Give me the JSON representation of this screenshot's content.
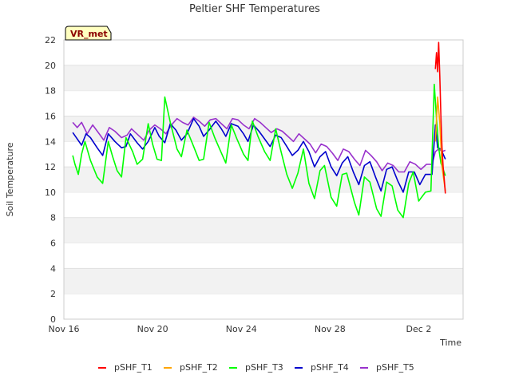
{
  "chart_data": {
    "type": "line",
    "title": "Peltier SHF Temperatures",
    "xlabel": "Time",
    "ylabel": "Soil Temperature",
    "badge": "VR_met",
    "ylim": [
      0,
      22
    ],
    "yticks": [
      0,
      2,
      4,
      6,
      8,
      10,
      12,
      14,
      16,
      18,
      20,
      22
    ],
    "xlim": [
      "Nov 16",
      "Dec 4"
    ],
    "xticks": [
      "Nov 16",
      "Nov 20",
      "Nov 24",
      "Nov 28",
      "Dec 2"
    ],
    "grid": "horizontal bands",
    "legend_position": "bottom",
    "series": [
      {
        "name": "pSHF_T1",
        "color": "#ff0000",
        "x": [
          16.75,
          16.8,
          16.85,
          16.9,
          16.95,
          17.0,
          17.05,
          17.1,
          17.15,
          17.2
        ],
        "y": [
          19.7,
          21.0,
          19.5,
          21.8,
          19.2,
          16.0,
          13.5,
          12.0,
          11.0,
          9.9
        ]
      },
      {
        "name": "pSHF_T2",
        "color": "#ffa500",
        "x": [
          16.75,
          16.85,
          16.95,
          17.05,
          17.2
        ],
        "y": [
          14.0,
          17.5,
          15.5,
          12.0,
          10.1
        ]
      },
      {
        "name": "pSHF_T3",
        "color": "#00ff00",
        "x": [
          0.4,
          0.5,
          0.65,
          0.8,
          0.95,
          1.2,
          1.5,
          1.75,
          2.0,
          2.2,
          2.4,
          2.6,
          2.8,
          3.1,
          3.3,
          3.55,
          3.8,
          4.0,
          4.2,
          4.4,
          4.55,
          4.8,
          5.1,
          5.3,
          5.55,
          5.85,
          6.1,
          6.3,
          6.55,
          6.8,
          7.1,
          7.3,
          7.55,
          7.8,
          8.1,
          8.3,
          8.5,
          8.75,
          9.05,
          9.3,
          9.55,
          9.75,
          10.05,
          10.3,
          10.55,
          10.8,
          11.05,
          11.3,
          11.55,
          11.75,
          12.05,
          12.3,
          12.55,
          12.75,
          13.1,
          13.3,
          13.55,
          13.8,
          14.1,
          14.3,
          14.55,
          14.8,
          15.05,
          15.3,
          15.55,
          15.75,
          16.0,
          16.3,
          16.55,
          16.7,
          16.8,
          16.9,
          17.0,
          17.2
        ],
        "y": [
          12.9,
          12.2,
          11.4,
          13.0,
          14.0,
          12.5,
          11.2,
          10.7,
          14.0,
          12.8,
          11.7,
          11.2,
          14.3,
          13.2,
          12.2,
          12.6,
          15.4,
          13.8,
          12.6,
          12.5,
          17.5,
          15.5,
          13.4,
          12.8,
          14.9,
          13.6,
          12.5,
          12.6,
          15.5,
          14.3,
          13.1,
          12.3,
          15.3,
          14.2,
          13.0,
          12.5,
          15.6,
          14.4,
          13.2,
          12.5,
          15.0,
          13.5,
          11.4,
          10.3,
          11.5,
          13.4,
          10.7,
          9.5,
          11.7,
          12.1,
          9.6,
          8.9,
          11.4,
          11.5,
          9.2,
          8.2,
          11.2,
          10.8,
          8.7,
          8.1,
          10.8,
          10.5,
          8.6,
          8.0,
          10.7,
          11.6,
          9.3,
          10.0,
          10.1,
          18.5,
          15.8,
          13.5,
          12.3,
          11.3
        ]
      },
      {
        "name": "pSHF_T4",
        "color": "#0000cd",
        "x": [
          0.4,
          0.6,
          0.8,
          1.0,
          1.2,
          1.5,
          1.75,
          2.0,
          2.3,
          2.6,
          2.8,
          3.0,
          3.3,
          3.55,
          3.8,
          4.1,
          4.3,
          4.55,
          4.8,
          5.05,
          5.3,
          5.55,
          5.85,
          6.1,
          6.3,
          6.55,
          6.85,
          7.1,
          7.3,
          7.55,
          7.85,
          8.1,
          8.3,
          8.55,
          8.8,
          9.05,
          9.3,
          9.55,
          9.8,
          10.05,
          10.3,
          10.55,
          10.8,
          11.05,
          11.3,
          11.55,
          11.8,
          12.05,
          12.3,
          12.55,
          12.8,
          13.05,
          13.3,
          13.55,
          13.8,
          14.05,
          14.3,
          14.55,
          14.8,
          15.05,
          15.3,
          15.55,
          15.8,
          16.05,
          16.3,
          16.6,
          16.75,
          16.85,
          17.0,
          17.2
        ],
        "y": [
          14.7,
          14.2,
          13.7,
          14.6,
          14.3,
          13.5,
          12.9,
          14.6,
          14.0,
          13.5,
          13.6,
          14.6,
          13.9,
          13.4,
          14.0,
          15.1,
          14.4,
          13.9,
          15.4,
          14.9,
          14.1,
          14.6,
          15.8,
          15.2,
          14.4,
          14.9,
          15.6,
          15.0,
          14.4,
          15.4,
          15.2,
          14.6,
          14.0,
          15.3,
          14.8,
          14.2,
          13.6,
          14.5,
          14.3,
          13.6,
          12.9,
          13.3,
          14.0,
          13.2,
          12.0,
          12.8,
          13.2,
          12.0,
          11.3,
          12.3,
          12.8,
          11.6,
          10.6,
          12.1,
          12.4,
          11.2,
          10.1,
          11.8,
          12.0,
          10.9,
          10.0,
          11.6,
          11.6,
          10.6,
          11.4,
          11.4,
          15.3,
          13.5,
          13.4,
          12.6
        ]
      },
      {
        "name": "pSHF_T5",
        "color": "#9932cc",
        "x": [
          0.4,
          0.6,
          0.8,
          1.05,
          1.3,
          1.55,
          1.8,
          2.05,
          2.3,
          2.6,
          2.85,
          3.05,
          3.35,
          3.6,
          3.85,
          4.1,
          4.35,
          4.6,
          4.85,
          5.1,
          5.35,
          5.6,
          5.85,
          6.1,
          6.35,
          6.6,
          6.85,
          7.1,
          7.35,
          7.6,
          7.85,
          8.1,
          8.35,
          8.6,
          8.85,
          9.1,
          9.35,
          9.6,
          9.85,
          10.1,
          10.35,
          10.6,
          10.85,
          11.1,
          11.35,
          11.6,
          11.85,
          12.1,
          12.35,
          12.6,
          12.85,
          13.1,
          13.35,
          13.6,
          13.85,
          14.1,
          14.35,
          14.6,
          14.85,
          15.1,
          15.35,
          15.6,
          15.85,
          16.1,
          16.35,
          16.6,
          16.75,
          16.9,
          17.05,
          17.2
        ],
        "y": [
          15.5,
          15.1,
          15.5,
          14.6,
          15.3,
          14.7,
          14.1,
          15.1,
          14.8,
          14.3,
          14.5,
          15.0,
          14.5,
          14.1,
          14.9,
          15.3,
          15.0,
          14.6,
          15.3,
          15.8,
          15.5,
          15.3,
          15.9,
          15.6,
          15.2,
          15.7,
          15.8,
          15.4,
          15.0,
          15.8,
          15.7,
          15.3,
          15.0,
          15.8,
          15.5,
          15.1,
          14.7,
          15.0,
          14.8,
          14.4,
          14.0,
          14.6,
          14.2,
          13.8,
          13.1,
          13.8,
          13.6,
          13.1,
          12.5,
          13.4,
          13.2,
          12.6,
          12.1,
          13.3,
          12.9,
          12.4,
          11.7,
          12.3,
          12.1,
          11.6,
          11.6,
          12.4,
          12.2,
          11.8,
          12.2,
          12.2,
          13.2,
          13.4,
          13.2,
          13.3
        ]
      }
    ]
  }
}
